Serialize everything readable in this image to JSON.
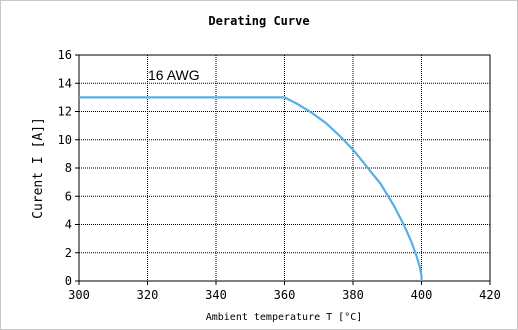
{
  "chart_data": {
    "type": "line",
    "title": "Derating Curve",
    "xlabel": "Ambient temperature T [°C]",
    "ylabel": "Curent I [A]]",
    "xlim": [
      300,
      420
    ],
    "ylim": [
      0,
      16
    ],
    "x_ticks": [
      300,
      320,
      340,
      360,
      380,
      400,
      420
    ],
    "y_ticks": [
      0,
      2,
      4,
      6,
      8,
      10,
      12,
      14,
      16
    ],
    "grid": true,
    "series": [
      {
        "name": "16 AWG",
        "color": "#5aaee6",
        "x": [
          300,
          360,
          364,
          368,
          372,
          376,
          380,
          384,
          388,
          392,
          395,
          397,
          398.5,
          399.5,
          400,
          400
        ],
        "y": [
          13,
          13,
          12.5,
          11.9,
          11.2,
          10.3,
          9.3,
          8.1,
          6.9,
          5.3,
          3.9,
          2.8,
          1.8,
          1.0,
          0.4,
          0
        ]
      }
    ]
  }
}
